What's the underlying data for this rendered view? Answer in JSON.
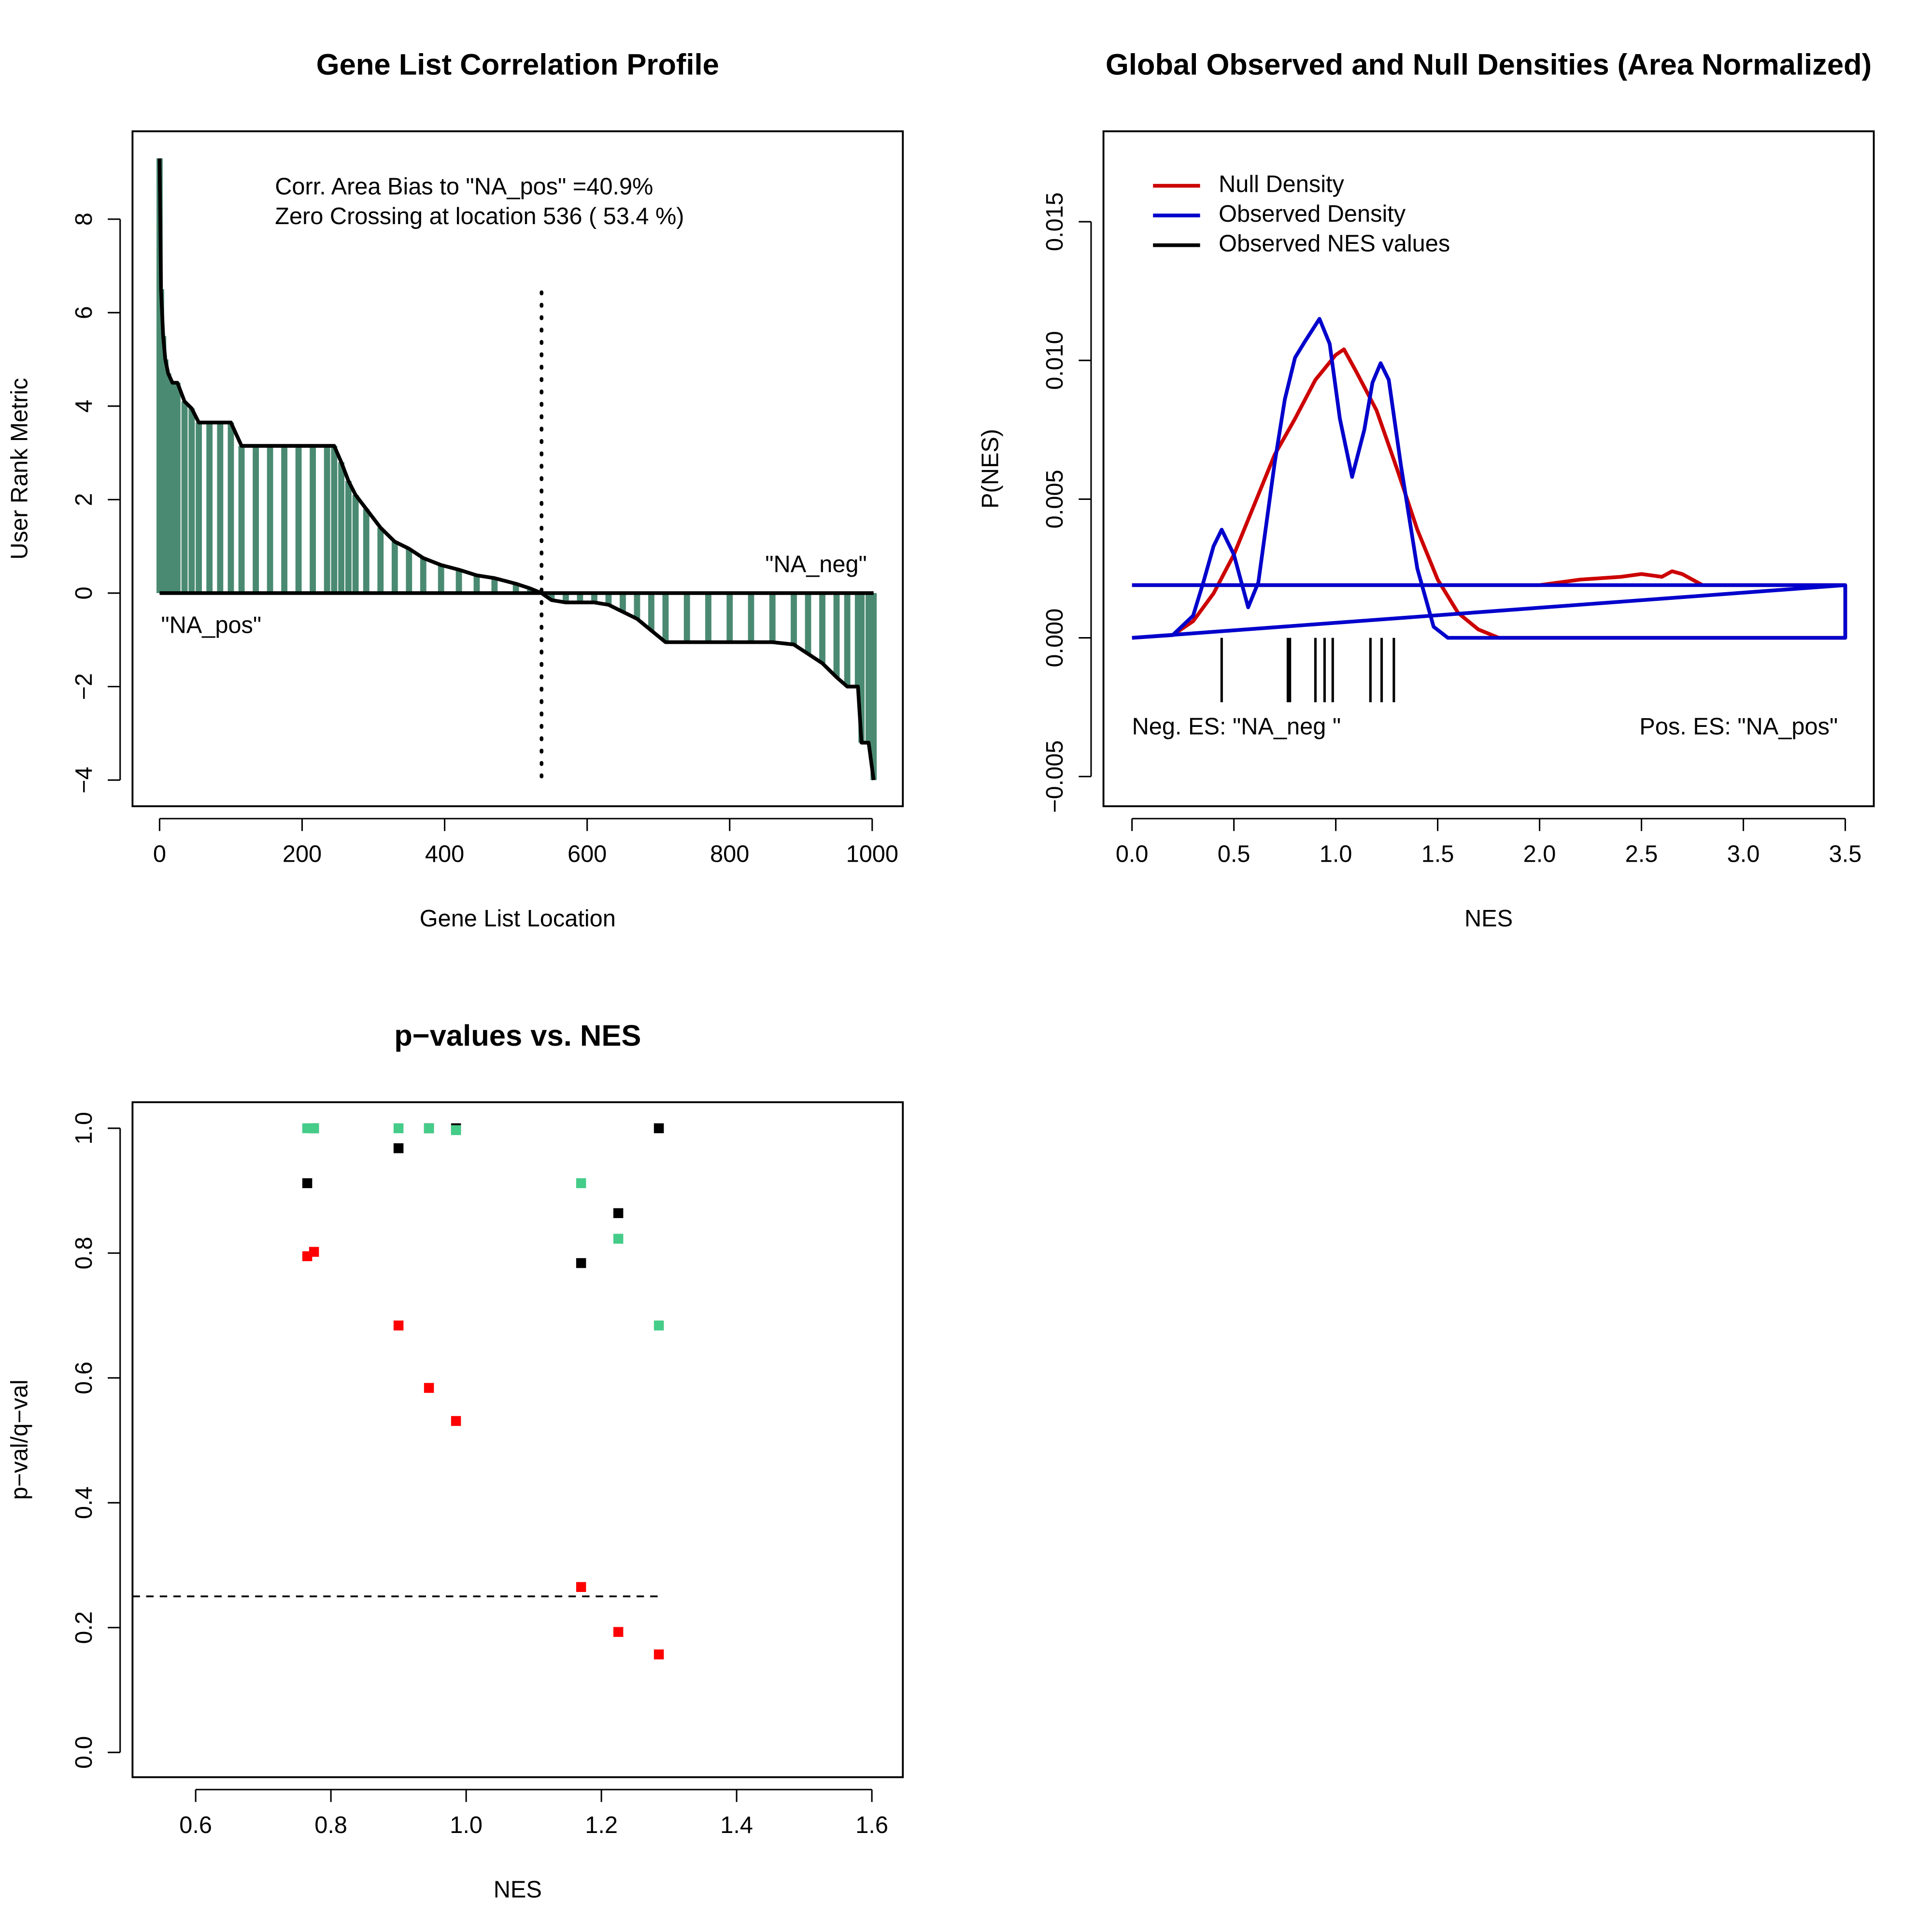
{
  "chart_data": [
    {
      "type": "area",
      "title": "Gene List Correlation Profile",
      "x_label": "Gene List Location",
      "y_label": "User Rank Metric",
      "annotations": [
        "Corr. Area Bias to \"NA_pos\" =40.9%",
        "Zero Crossing at location  536  ( 53.4  %)",
        "\"NA_neg\"",
        "\"NA_pos\""
      ],
      "zero_crossing": 536,
      "color": "#4a8a72",
      "line_color": "#000000",
      "x": [
        0,
        2,
        5,
        8,
        12,
        18,
        25,
        35,
        45,
        55,
        70,
        85,
        100,
        115,
        135,
        155,
        175,
        195,
        215,
        235,
        245,
        255,
        265,
        275,
        290,
        310,
        330,
        350,
        370,
        395,
        420,
        445,
        470,
        500,
        520,
        536,
        550,
        570,
        590,
        610,
        630,
        650,
        670,
        690,
        710,
        740,
        770,
        800,
        830,
        860,
        890,
        910,
        930,
        950,
        965,
        980,
        985,
        995,
        1002
      ],
      "values": [
        9.3,
        6.5,
        5.5,
        5.0,
        4.7,
        4.5,
        4.5,
        4.1,
        3.95,
        3.65,
        3.65,
        3.65,
        3.65,
        3.15,
        3.15,
        3.15,
        3.15,
        3.15,
        3.15,
        3.15,
        3.15,
        2.8,
        2.4,
        2.1,
        1.8,
        1.4,
        1.1,
        0.95,
        0.75,
        0.6,
        0.5,
        0.38,
        0.32,
        0.2,
        0.1,
        0,
        -0.15,
        -0.2,
        -0.2,
        -0.2,
        -0.25,
        -0.4,
        -0.55,
        -0.8,
        -1.05,
        -1.05,
        -1.05,
        -1.05,
        -1.05,
        -1.05,
        -1.1,
        -1.3,
        -1.5,
        -1.8,
        -2,
        -2,
        -3.2,
        -3.2,
        -4
      ],
      "xlim": [
        -38,
        1043
      ],
      "xticks": [
        0,
        200,
        400,
        600,
        800,
        1000
      ],
      "ylim": [
        -4.56,
        9.88
      ],
      "yticks": [
        {
          "value": -4,
          "label": "−4"
        },
        {
          "value": -2,
          "label": "−2"
        },
        0,
        2,
        4,
        6,
        8
      ]
    },
    {
      "type": "line",
      "title": "Global Observed and Null Densities (Area Normalized)",
      "x_label": "NES",
      "y_label": "P(NES)",
      "legend": "top-left",
      "annotations": [
        "Neg. ES: \"NA_neg \"",
        "Pos. ES: \"NA_pos\""
      ],
      "series": [
        {
          "name": "Null Density",
          "color": "#cc0000",
          "x": [
            0,
            0.2,
            0.3,
            0.4,
            0.5,
            0.6,
            0.7,
            0.8,
            0.9,
            1.0,
            1.04,
            1.1,
            1.2,
            1.3,
            1.4,
            1.5,
            1.6,
            1.7,
            1.8,
            3.5,
            3.5,
            2.8,
            2.7,
            2.65,
            2.6,
            2.5,
            2.4,
            2.2,
            2.0,
            0
          ],
          "values": [
            0,
            0.0001,
            0.0006,
            0.0016,
            0.003,
            0.0048,
            0.0066,
            0.0079,
            0.0093,
            0.0102,
            0.0104,
            0.0096,
            0.0082,
            0.0061,
            0.0039,
            0.0021,
            0.0009,
            0.0003,
            0,
            0,
            0.0019,
            0.0019,
            0.0023,
            0.0024,
            0.0022,
            0.0023,
            0.0022,
            0.0021,
            0.0019,
            0.0019
          ]
        },
        {
          "name": "Observed Density",
          "color": "#0000cc",
          "x": [
            0,
            0.2,
            0.3,
            0.35,
            0.4,
            0.44,
            0.5,
            0.57,
            0.62,
            0.7,
            0.75,
            0.8,
            0.85,
            0.92,
            0.97,
            1.02,
            1.08,
            1.14,
            1.18,
            1.22,
            1.26,
            1.32,
            1.4,
            1.48,
            1.55,
            3.5,
            3.5,
            0,
            0,
            0,
            3.5
          ],
          "values": [
            0,
            0.0001,
            0.0008,
            0.002,
            0.0033,
            0.0039,
            0.003,
            0.0011,
            0.002,
            0.0063,
            0.0086,
            0.0101,
            0.0107,
            0.0115,
            0.0106,
            0.0079,
            0.0058,
            0.0075,
            0.0092,
            0.0099,
            0.0093,
            0.0062,
            0.0025,
            0.0004,
            0,
            0,
            0.0019,
            0.0019,
            null,
            0,
            0.0019
          ]
        },
        {
          "name": "Observed NES values",
          "color": "#000000",
          "x": [
            0.44,
            0.765,
            0.775,
            0.9,
            0.945,
            0.985,
            1.17,
            1.225,
            1.285
          ]
        }
      ],
      "xlim": [
        -0.14,
        3.64
      ],
      "xticks": [
        {
          "value": 0,
          "label": "0.0"
        },
        0.5,
        {
          "value": 1,
          "label": "1.0"
        },
        1.5,
        {
          "value": 2,
          "label": "2.0"
        },
        2.5,
        {
          "value": 3,
          "label": "3.0"
        },
        3.5
      ],
      "ylim": [
        -0.00607,
        0.01826
      ],
      "yticks": [
        {
          "value": -0.005,
          "label": "−0.005"
        },
        {
          "value": 0,
          "label": "0.000"
        },
        0.005,
        {
          "value": 0.01,
          "label": "0.010"
        },
        0.015
      ]
    },
    {
      "type": "scatter",
      "title": "p−values vs. NES",
      "x_label": "NES",
      "y_label": "p−val/q−val",
      "hline": 0.25,
      "x": [
        0.765,
        0.775,
        0.9,
        0.945,
        0.985,
        1.17,
        1.225,
        1.285
      ],
      "series": [
        {
          "color": "#000000",
          "values": [
            0.912,
            1.0,
            0.968,
            1.0,
            1.0,
            0.784,
            0.864,
            1.0
          ]
        },
        {
          "color": "#ff0000",
          "values": [
            0.795,
            0.802,
            0.684,
            0.584,
            0.531,
            0.265,
            0.193,
            0.157
          ]
        },
        {
          "color": "#44cc88",
          "values": [
            1.0,
            1.0,
            1.0,
            1.0,
            0.997,
            0.912,
            0.823,
            0.684
          ]
        }
      ],
      "xlim": [
        0.5066,
        1.6458
      ],
      "xticks": [
        0.6,
        0.8,
        {
          "value": 1,
          "label": "1.0"
        },
        1.2,
        1.4,
        1.6
      ],
      "ylim": [
        -0.0397,
        1.0417
      ],
      "yticks": [
        {
          "value": 0,
          "label": "0.0"
        },
        0.2,
        0.4,
        0.6,
        0.8,
        {
          "value": 1,
          "label": "1.0"
        }
      ]
    }
  ]
}
